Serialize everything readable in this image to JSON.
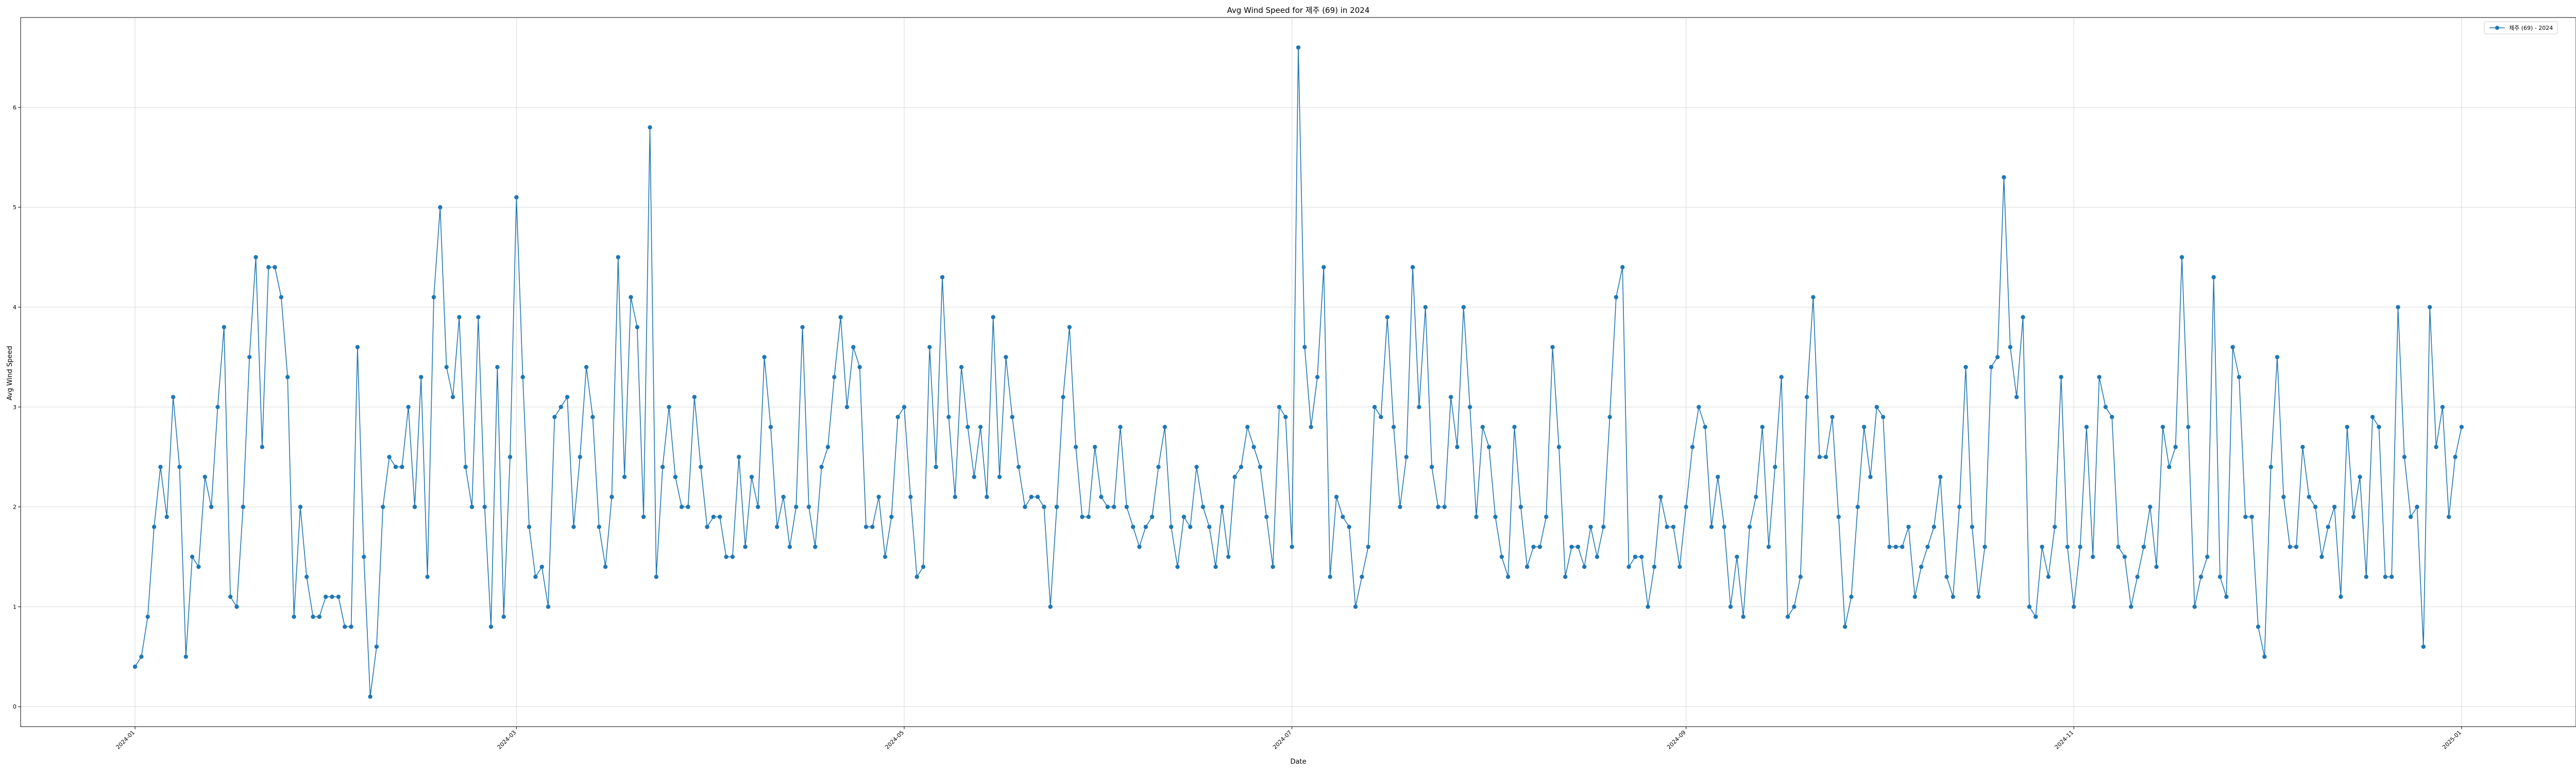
{
  "chart_data": {
    "type": "line",
    "title": "Avg Wind Speed for 제주 (69) in 2024",
    "xlabel": "Date",
    "ylabel": "Avg Wind Speed",
    "x_range": [
      "2023-12-14",
      "2025-01-19"
    ],
    "ylim": [
      -0.2,
      6.9
    ],
    "y_ticks": [
      0,
      1,
      2,
      3,
      4,
      5,
      6
    ],
    "x_ticks": [
      "2024-01-01",
      "2024-03-01",
      "2024-05-01",
      "2024-07-01",
      "2024-09-01",
      "2024-11-01",
      "2025-01-01"
    ],
    "x_tick_labels": [
      "2024-01",
      "2024-03",
      "2024-05",
      "2024-07",
      "2024-09",
      "2024-11",
      "2025-01"
    ],
    "grid": true,
    "legend_position": "top-right",
    "colors": {
      "series": "#1f77b4",
      "grid": "#d9d9d9",
      "axes": "#000000"
    },
    "series": [
      {
        "name": "제주 (69) - 2024",
        "start_date": "2024-01-01",
        "interval": "daily",
        "values": [
          0.4,
          0.5,
          0.9,
          1.8,
          2.4,
          1.9,
          3.1,
          2.4,
          0.5,
          1.5,
          1.4,
          2.3,
          2.0,
          3.0,
          3.8,
          1.1,
          1.0,
          2.0,
          3.5,
          4.5,
          2.6,
          4.4,
          4.4,
          4.1,
          3.3,
          0.9,
          2.0,
          1.3,
          0.9,
          0.9,
          1.1,
          1.1,
          1.1,
          0.8,
          0.8,
          3.6,
          1.5,
          0.1,
          0.6,
          2.0,
          2.5,
          2.4,
          2.4,
          3.0,
          2.0,
          3.3,
          1.3,
          4.1,
          5.0,
          3.4,
          3.1,
          3.9,
          2.4,
          2.0,
          3.9,
          2.0,
          0.8,
          3.4,
          0.9,
          2.5,
          5.1,
          3.3,
          1.8,
          1.3,
          1.4,
          1.0,
          2.9,
          3.0,
          3.1,
          1.8,
          2.5,
          3.4,
          2.9,
          1.8,
          1.4,
          2.1,
          4.5,
          2.3,
          4.1,
          3.8,
          1.9,
          5.8,
          1.3,
          2.4,
          3.0,
          2.3,
          2.0,
          2.0,
          3.1,
          2.4,
          1.8,
          1.9,
          1.9,
          1.5,
          1.5,
          2.5,
          1.6,
          2.3,
          2.0,
          3.5,
          2.8,
          1.8,
          2.1,
          1.6,
          2.0,
          3.8,
          2.0,
          1.6,
          2.4,
          2.6,
          3.3,
          3.9,
          3.0,
          3.6,
          3.4,
          1.8,
          1.8,
          2.1,
          1.5,
          1.9,
          2.9,
          3.0,
          2.1,
          1.3,
          1.4,
          3.6,
          2.4,
          4.3,
          2.9,
          2.1,
          3.4,
          2.8,
          2.3,
          2.8,
          2.1,
          3.9,
          2.3,
          3.5,
          2.9,
          2.4,
          2.0,
          2.1,
          2.1,
          2.0,
          1.0,
          2.0,
          3.1,
          3.8,
          2.6,
          1.9,
          1.9,
          2.6,
          2.1,
          2.0,
          2.0,
          2.8,
          2.0,
          1.8,
          1.6,
          1.8,
          1.9,
          2.4,
          2.8,
          1.8,
          1.4,
          1.9,
          1.8,
          2.4,
          2.0,
          1.8,
          1.4,
          2.0,
          1.5,
          2.3,
          2.4,
          2.8,
          2.6,
          2.4,
          1.9,
          1.4,
          3.0,
          2.9,
          1.6,
          6.6,
          3.6,
          2.8,
          3.3,
          4.4,
          1.3,
          2.1,
          1.9,
          1.8,
          1.0,
          1.3,
          1.6,
          3.0,
          2.9,
          3.9,
          2.8,
          2.0,
          2.5,
          4.4,
          3.0,
          4.0,
          2.4,
          2.0,
          2.0,
          3.1,
          2.6,
          4.0,
          3.0,
          1.9,
          2.8,
          2.6,
          1.9,
          1.5,
          1.3,
          2.8,
          2.0,
          1.4,
          1.6,
          1.6,
          1.9,
          3.6,
          2.6,
          1.3,
          1.6,
          1.6,
          1.4,
          1.8,
          1.5,
          1.8,
          2.9,
          4.1,
          4.4,
          1.4,
          1.5,
          1.5,
          1.0,
          1.4,
          2.1,
          1.8,
          1.8,
          1.4,
          2.0,
          2.6,
          3.0,
          2.8,
          1.8,
          2.3,
          1.8,
          1.0,
          1.5,
          0.9,
          1.8,
          2.1,
          2.8,
          1.6,
          2.4,
          3.3,
          0.9,
          1.0,
          1.3,
          3.1,
          4.1,
          2.5,
          2.5,
          2.9,
          1.9,
          0.8,
          1.1,
          2.0,
          2.8,
          2.3,
          3.0,
          2.9,
          1.6,
          1.6,
          1.6,
          1.8,
          1.1,
          1.4,
          1.6,
          1.8,
          2.3,
          1.3,
          1.1,
          2.0,
          3.4,
          1.8,
          1.1,
          1.6,
          3.4,
          3.5,
          5.3,
          3.6,
          3.1,
          3.9,
          1.0,
          0.9,
          1.6,
          1.3,
          1.8,
          3.3,
          1.6,
          1.0,
          1.6,
          2.8,
          1.5,
          3.3,
          3.0,
          2.9,
          1.6,
          1.5,
          1.0,
          1.3,
          1.6,
          2.0,
          1.4,
          2.8,
          2.4,
          2.6,
          4.5,
          2.8,
          1.0,
          1.3,
          1.5,
          4.3,
          1.3,
          1.1,
          3.6,
          3.3,
          1.9,
          1.9,
          0.8,
          0.5,
          2.4,
          3.5,
          2.1,
          1.6,
          1.6,
          2.6,
          2.1,
          2.0,
          1.5,
          1.8,
          2.0,
          1.1,
          2.8,
          1.9,
          2.3,
          1.3,
          2.9,
          2.8,
          1.3,
          1.3,
          4.0,
          2.5,
          1.9,
          2.0,
          0.6,
          4.0,
          2.6,
          3.0,
          1.9,
          2.5,
          2.8
        ]
      }
    ]
  }
}
